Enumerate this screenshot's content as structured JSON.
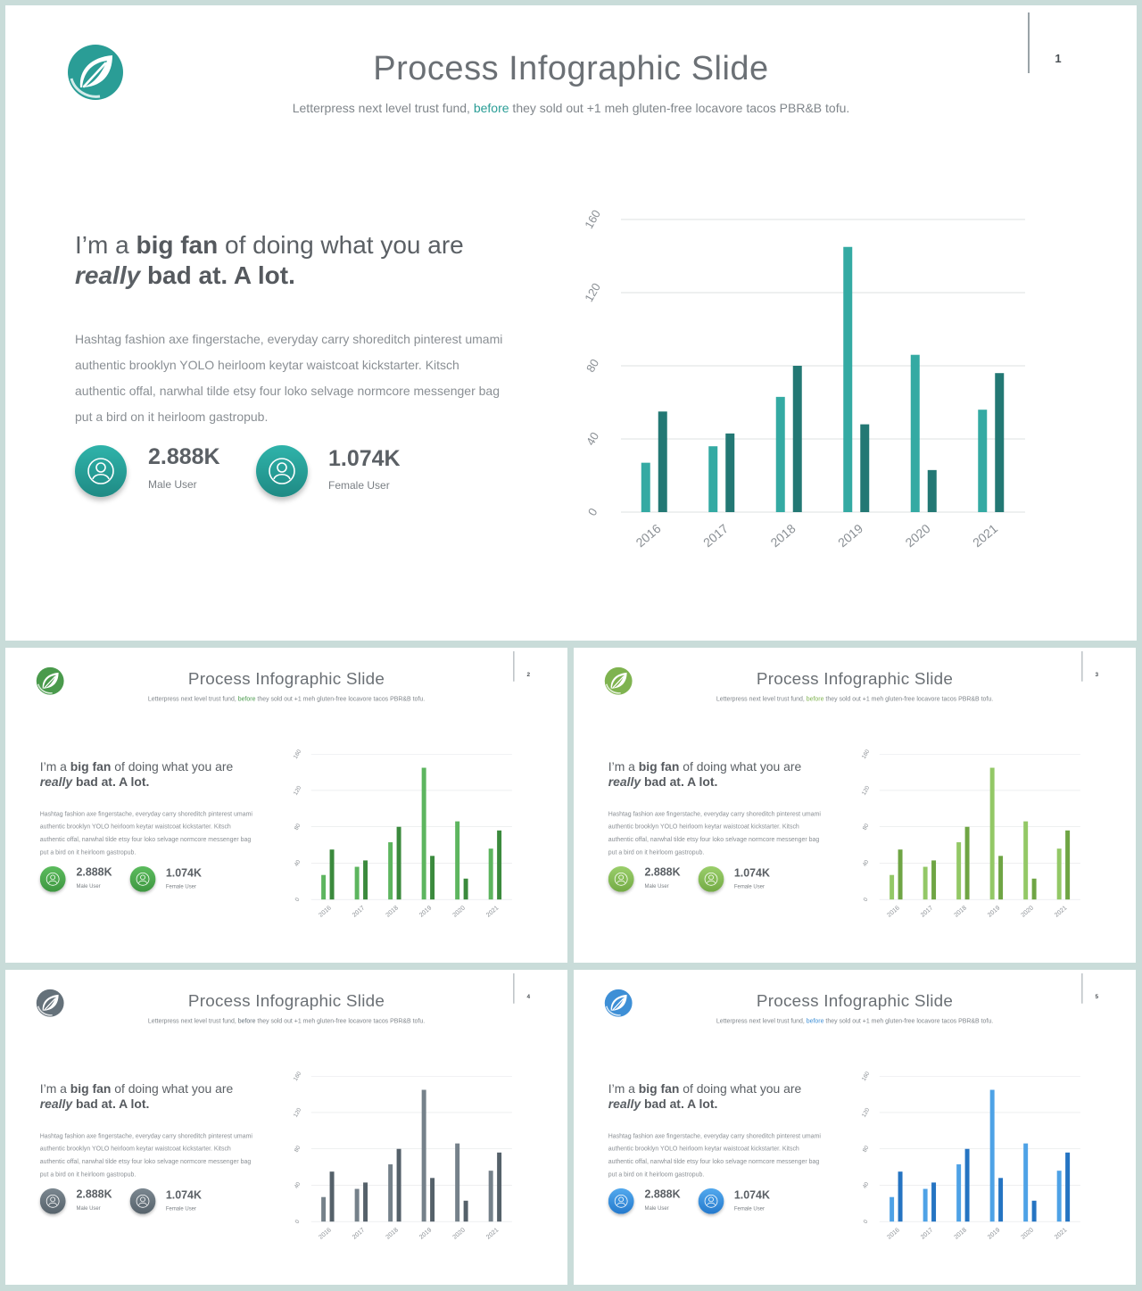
{
  "slides": [
    {
      "number": "1",
      "accent": "#2a9d96",
      "accent_dark": "#237874",
      "light": "#34aaa3",
      "circle_grad": [
        "#2fb3aa",
        "#1f8a84"
      ]
    },
    {
      "number": "2",
      "accent": "#4a9a4c",
      "accent_dark": "#3b8a3d",
      "light": "#5db55f",
      "circle_grad": [
        "#5cbc5e",
        "#3e9741"
      ]
    },
    {
      "number": "3",
      "accent": "#7fb350",
      "accent_dark": "#6fa544",
      "light": "#93c866",
      "circle_grad": [
        "#9bcf6b",
        "#73aa45"
      ]
    },
    {
      "number": "4",
      "accent": "#65717a",
      "accent_dark": "#55616a",
      "light": "#75818a",
      "circle_grad": [
        "#7b8790",
        "#56626b"
      ]
    },
    {
      "number": "5",
      "accent": "#3e8fd6",
      "accent_dark": "#2574c2",
      "light": "#4ea2e6",
      "circle_grad": [
        "#53a9ee",
        "#2479cc"
      ]
    }
  ],
  "content": {
    "title": "Process Infographic Slide",
    "subtitle_before": "Letterpress next level trust fund, ",
    "subtitle_highlight": "before",
    "subtitle_after": " they sold out +1 meh gluten-free locavore tacos PBR&B tofu.",
    "headline_1": "I’m a ",
    "headline_bold": "big fan",
    "headline_2": " of doing what you are",
    "headline_italic": "really",
    "headline_3": " bad at. A lot.",
    "body": "Hashtag fashion axe fingerstache, everyday carry shoreditch pinterest umami authentic brooklyn YOLO heirloom keytar waistcoat kickstarter. Kitsch authentic offal, narwhal tilde etsy four loko selvage normcore messenger bag put a bird on it heirloom gastropub.",
    "stats": [
      {
        "value": "2.888K",
        "label": "Male User",
        "icon": "male-user-icon"
      },
      {
        "value": "1.074K",
        "label": "Female User",
        "icon": "female-user-icon"
      }
    ]
  },
  "chart_data": {
    "type": "bar",
    "categories": [
      "2016",
      "2017",
      "2018",
      "2019",
      "2020",
      "2021"
    ],
    "series": [
      {
        "values": [
          27,
          36,
          63,
          145,
          86,
          56
        ]
      },
      {
        "values": [
          55,
          43,
          80,
          48,
          23,
          76
        ]
      }
    ],
    "yticks": [
      "0",
      "40",
      "80",
      "120",
      "160"
    ],
    "ylim": [
      0,
      160
    ],
    "grid": true
  }
}
